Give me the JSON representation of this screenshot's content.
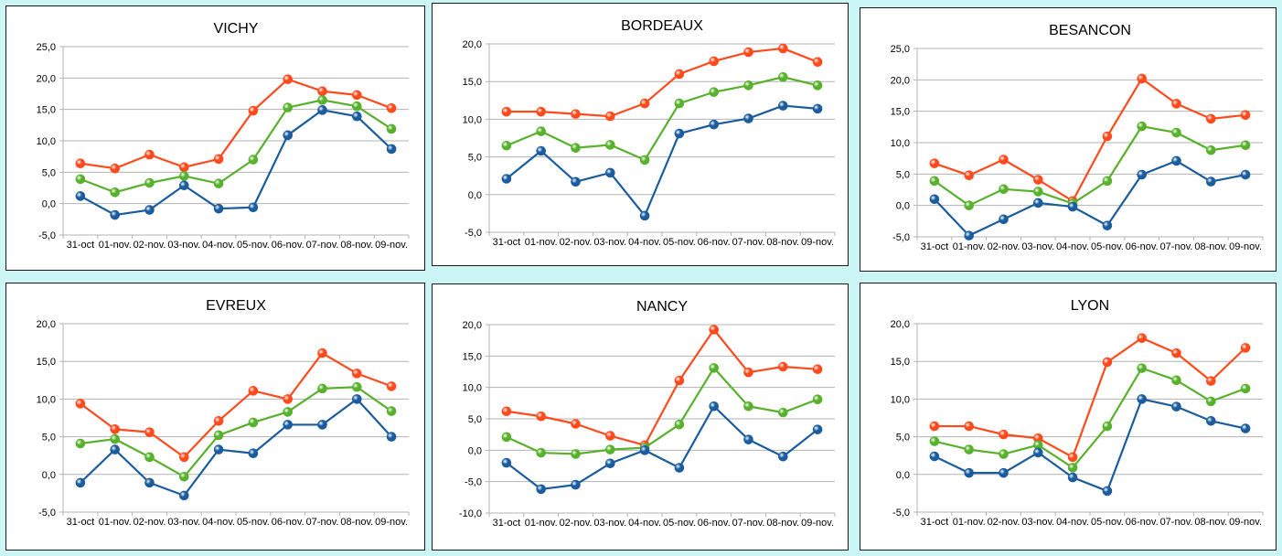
{
  "colors": {
    "red": "#ff4a1c",
    "green": "#58b12c",
    "blue": "#1a5c9e"
  },
  "chart_data": [
    {
      "type": "line",
      "title": "VICHY",
      "ylim": [
        -5,
        25
      ],
      "yticks": [
        "-5,0",
        "0,0",
        "5,0",
        "10,0",
        "15,0",
        "20,0",
        "25,0"
      ],
      "categories": [
        "31-oct",
        "01-nov.",
        "02-nov.",
        "03-nov.",
        "04-nov.",
        "05-nov.",
        "06-nov.",
        "07-nov.",
        "08-nov.",
        "09-nov."
      ],
      "series": [
        {
          "color": "red",
          "values": [
            6.4,
            5.6,
            7.8,
            5.8,
            7.1,
            14.8,
            19.8,
            17.9,
            17.3,
            15.2
          ]
        },
        {
          "color": "green",
          "values": [
            3.9,
            1.8,
            3.3,
            4.4,
            3.2,
            7.0,
            15.3,
            16.5,
            15.5,
            11.9
          ]
        },
        {
          "color": "blue",
          "values": [
            1.2,
            -1.8,
            -1.0,
            2.9,
            -0.8,
            -0.6,
            10.9,
            14.9,
            13.9,
            8.7
          ]
        }
      ]
    },
    {
      "type": "line",
      "title": "BORDEAUX",
      "ylim": [
        -5,
        20
      ],
      "yticks": [
        "-5,0",
        "0,0",
        "5,0",
        "10,0",
        "15,0",
        "20,0"
      ],
      "categories": [
        "31-oct",
        "01-nov.",
        "02-nov.",
        "03-nov.",
        "04-nov.",
        "05-nov.",
        "06-nov.",
        "07-nov.",
        "08-nov.",
        "09-nov."
      ],
      "series": [
        {
          "color": "red",
          "values": [
            11.0,
            11.0,
            10.7,
            10.4,
            12.1,
            16.0,
            17.7,
            18.9,
            19.4,
            17.6
          ]
        },
        {
          "color": "green",
          "values": [
            6.5,
            8.4,
            6.2,
            6.6,
            4.6,
            12.1,
            13.6,
            14.5,
            15.6,
            14.5
          ]
        },
        {
          "color": "blue",
          "values": [
            2.1,
            5.8,
            1.7,
            2.9,
            -2.8,
            8.1,
            9.3,
            10.1,
            11.8,
            11.4
          ]
        }
      ]
    },
    {
      "type": "line",
      "title": "BESANCON",
      "ylim": [
        -5,
        25
      ],
      "yticks": [
        "-5,0",
        "0,0",
        "5,0",
        "10,0",
        "15,0",
        "20,0",
        "25,0"
      ],
      "categories": [
        "31-oct",
        "01-nov.",
        "02-nov.",
        "03-nov.",
        "04-nov.",
        "05-nov.",
        "06-nov.",
        "07-nov.",
        "08-nov.",
        "09-nov."
      ],
      "series": [
        {
          "color": "red",
          "values": [
            6.7,
            4.8,
            7.3,
            4.1,
            0.7,
            11.0,
            20.2,
            16.2,
            13.8,
            14.4
          ]
        },
        {
          "color": "green",
          "values": [
            3.9,
            0.0,
            2.6,
            2.2,
            0.3,
            3.9,
            12.6,
            11.6,
            8.8,
            9.6
          ]
        },
        {
          "color": "blue",
          "values": [
            1.0,
            -4.8,
            -2.2,
            0.4,
            -0.2,
            -3.2,
            4.9,
            7.1,
            3.8,
            4.9
          ]
        }
      ]
    },
    {
      "type": "line",
      "title": "EVREUX",
      "ylim": [
        -5,
        20
      ],
      "yticks": [
        "-5,0",
        "0,0",
        "5,0",
        "10,0",
        "15,0",
        "20,0"
      ],
      "categories": [
        "31-oct",
        "01-nov.",
        "02-nov.",
        "03-nov.",
        "04-nov.",
        "05-nov.",
        "06-nov.",
        "07-nov.",
        "08-nov.",
        "09-nov."
      ],
      "series": [
        {
          "color": "red",
          "values": [
            9.4,
            6.0,
            5.6,
            2.3,
            7.1,
            11.1,
            10.0,
            16.1,
            13.4,
            11.7
          ]
        },
        {
          "color": "green",
          "values": [
            4.1,
            4.7,
            2.3,
            -0.3,
            5.2,
            6.9,
            8.3,
            11.4,
            11.6,
            8.4
          ]
        },
        {
          "color": "blue",
          "values": [
            -1.1,
            3.3,
            -1.1,
            -2.8,
            3.3,
            2.8,
            6.6,
            6.6,
            10.0,
            5.0
          ]
        }
      ]
    },
    {
      "type": "line",
      "title": "NANCY",
      "ylim": [
        -10,
        20
      ],
      "yticks": [
        "-10,0",
        "-5,0",
        "0,0",
        "5,0",
        "10,0",
        "15,0",
        "20,0"
      ],
      "categories": [
        "31-oct",
        "01-nov.",
        "02-nov.",
        "03-nov.",
        "04-nov.",
        "05-nov.",
        "06-nov.",
        "07-nov.",
        "08-nov.",
        "09-nov."
      ],
      "series": [
        {
          "color": "red",
          "values": [
            6.2,
            5.4,
            4.2,
            2.3,
            0.8,
            11.1,
            19.2,
            12.4,
            13.3,
            12.9
          ]
        },
        {
          "color": "green",
          "values": [
            2.1,
            -0.4,
            -0.6,
            0.1,
            0.4,
            4.1,
            13.1,
            7.0,
            6.0,
            8.1
          ]
        },
        {
          "color": "blue",
          "values": [
            -2.0,
            -6.2,
            -5.5,
            -2.1,
            0.0,
            -2.8,
            7.0,
            1.7,
            -1.0,
            3.3
          ]
        }
      ]
    },
    {
      "type": "line",
      "title": "LYON",
      "ylim": [
        -5,
        20
      ],
      "yticks": [
        "-5,0",
        "0,0",
        "5,0",
        "10,0",
        "15,0",
        "20,0"
      ],
      "categories": [
        "31-oct",
        "01-nov.",
        "02-nov.",
        "03-nov.",
        "04-nov.",
        "05-nov.",
        "06-nov.",
        "07-nov.",
        "08-nov.",
        "09-nov."
      ],
      "series": [
        {
          "color": "red",
          "values": [
            6.4,
            6.4,
            5.3,
            4.8,
            2.3,
            14.9,
            18.1,
            16.1,
            12.4,
            16.8
          ]
        },
        {
          "color": "green",
          "values": [
            4.4,
            3.3,
            2.7,
            3.9,
            0.9,
            6.4,
            14.1,
            12.5,
            9.7,
            11.4
          ]
        },
        {
          "color": "blue",
          "values": [
            2.4,
            0.2,
            0.2,
            2.9,
            -0.4,
            -2.2,
            10.0,
            9.0,
            7.1,
            6.1
          ]
        }
      ]
    }
  ]
}
